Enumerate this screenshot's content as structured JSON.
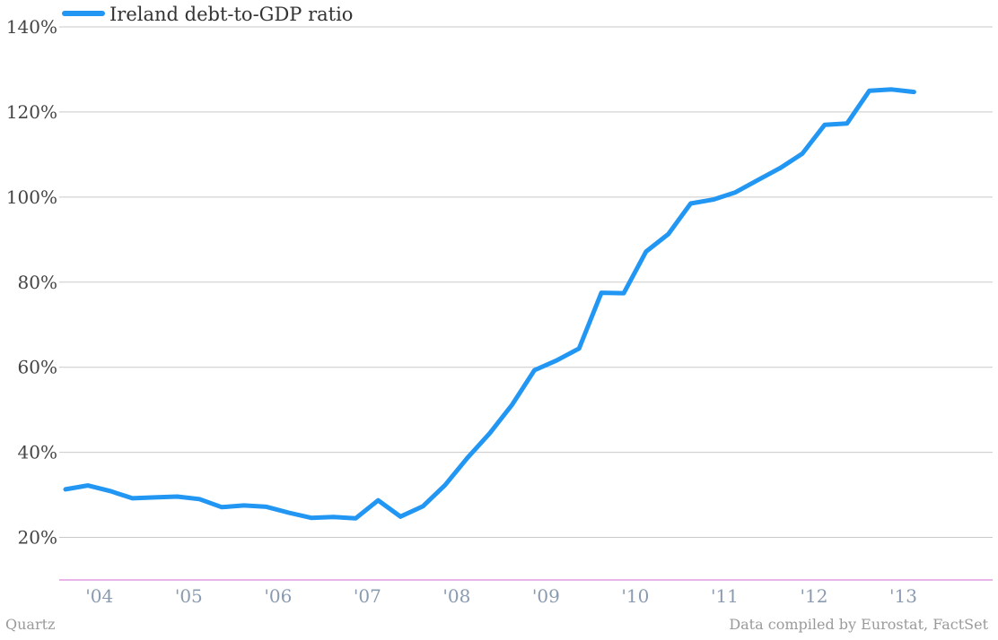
{
  "chart_data": {
    "type": "line",
    "ylim": [
      10,
      140
    ],
    "yticks": [
      20,
      40,
      60,
      80,
      100,
      120,
      140
    ],
    "ytick_labels": [
      "20%",
      "40%",
      "60%",
      "80%",
      "100%",
      "120%",
      "140%"
    ],
    "xlim": [
      2003.55,
      2014.0
    ],
    "xticks": [
      2004.0,
      2005.0,
      2006.0,
      2007.0,
      2008.0,
      2009.0,
      2010.0,
      2011.0,
      2012.0,
      2013.0
    ],
    "xtick_labels": [
      "'04",
      "'05",
      "'06",
      "'07",
      "'08",
      "'09",
      "'10",
      "'11",
      "'12",
      "'13"
    ],
    "legend": "top-left",
    "grid": "horizontal",
    "color": "#2196f3",
    "baseline_color": "#d36bd3",
    "series": [
      {
        "name": "Ireland debt-to-GDP ratio",
        "x": [
          2003.62,
          2003.87,
          2004.12,
          2004.37,
          2004.62,
          2004.87,
          2005.12,
          2005.37,
          2005.62,
          2005.87,
          2006.12,
          2006.37,
          2006.62,
          2006.87,
          2007.12,
          2007.37,
          2007.62,
          2007.87,
          2008.12,
          2008.37,
          2008.62,
          2008.87,
          2009.12,
          2009.37,
          2009.62,
          2009.87,
          2010.12,
          2010.37,
          2010.62,
          2010.87,
          2011.12,
          2011.37,
          2011.62,
          2011.87,
          2012.12,
          2012.37,
          2012.62,
          2012.87,
          2013.12
        ],
        "y": [
          31.3,
          32.2,
          30.9,
          29.2,
          29.4,
          29.6,
          29.0,
          27.1,
          27.5,
          27.2,
          25.8,
          24.6,
          24.8,
          24.5,
          28.7,
          24.9,
          27.3,
          32.3,
          38.7,
          44.5,
          51.2,
          59.3,
          61.6,
          64.4,
          77.5,
          77.4,
          87.2,
          91.3,
          98.5,
          99.4,
          101.1,
          104.0,
          106.8,
          110.2,
          117.0,
          117.3,
          125.0,
          125.3,
          124.7
        ]
      }
    ]
  },
  "footer": {
    "source_left": "Quartz",
    "source_right": "Data compiled by Eurostat, FactSet"
  }
}
